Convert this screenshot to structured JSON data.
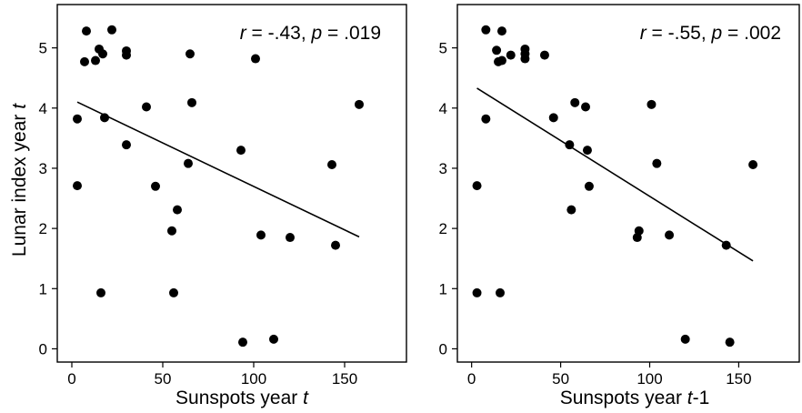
{
  "chart_data": [
    {
      "type": "scatter",
      "title": "",
      "annotation": {
        "r_label": "r",
        "r_value": " = -.43, ",
        "p_label": "p",
        "p_value": " = .019"
      },
      "xlabel": {
        "text": "Sunspots year ",
        "var": "t",
        "suffix": ""
      },
      "ylabel": {
        "text": "Lunar index year ",
        "var": "t"
      },
      "xlim": [
        -8,
        184
      ],
      "ylim": [
        -0.22,
        5.72
      ],
      "xticks": [
        0,
        50,
        100,
        150
      ],
      "yticks": [
        0,
        1,
        2,
        3,
        4,
        5
      ],
      "fit_line": {
        "x": [
          3,
          158
        ],
        "y": [
          4.1,
          1.86
        ]
      },
      "points": [
        {
          "x": 8,
          "y": 5.28
        },
        {
          "x": 22,
          "y": 5.3
        },
        {
          "x": 7,
          "y": 4.77
        },
        {
          "x": 13,
          "y": 4.79
        },
        {
          "x": 15,
          "y": 4.98
        },
        {
          "x": 17,
          "y": 4.9
        },
        {
          "x": 30,
          "y": 4.95
        },
        {
          "x": 30,
          "y": 4.88
        },
        {
          "x": 65,
          "y": 4.9
        },
        {
          "x": 101,
          "y": 4.82
        },
        {
          "x": 3,
          "y": 3.82
        },
        {
          "x": 18,
          "y": 3.84
        },
        {
          "x": 41,
          "y": 4.02
        },
        {
          "x": 66,
          "y": 4.09
        },
        {
          "x": 158,
          "y": 4.06
        },
        {
          "x": 30,
          "y": 3.39
        },
        {
          "x": 93,
          "y": 3.3
        },
        {
          "x": 64,
          "y": 3.08
        },
        {
          "x": 143,
          "y": 3.06
        },
        {
          "x": 3,
          "y": 2.71
        },
        {
          "x": 46,
          "y": 2.7
        },
        {
          "x": 58,
          "y": 2.31
        },
        {
          "x": 55,
          "y": 1.96
        },
        {
          "x": 104,
          "y": 1.89
        },
        {
          "x": 120,
          "y": 1.85
        },
        {
          "x": 145,
          "y": 1.72
        },
        {
          "x": 16,
          "y": 0.93
        },
        {
          "x": 56,
          "y": 0.93
        },
        {
          "x": 111,
          "y": 0.16
        },
        {
          "x": 94,
          "y": 0.11
        }
      ]
    },
    {
      "type": "scatter",
      "title": "",
      "annotation": {
        "r_label": "r",
        "r_value": " = -.55, ",
        "p_label": "p",
        "p_value": " = .002"
      },
      "xlabel": {
        "text": "Sunspots year ",
        "var": "t",
        "suffix": "-1"
      },
      "ylabel": {
        "text": "",
        "var": ""
      },
      "xlim": [
        -8,
        184
      ],
      "ylim": [
        -0.22,
        5.72
      ],
      "xticks": [
        0,
        50,
        100,
        150
      ],
      "yticks": [
        0,
        1,
        2,
        3,
        4,
        5
      ],
      "fit_line": {
        "x": [
          3,
          158
        ],
        "y": [
          4.33,
          1.46
        ]
      },
      "points": [
        {
          "x": 8,
          "y": 5.3
        },
        {
          "x": 17,
          "y": 5.28
        },
        {
          "x": 14,
          "y": 4.96
        },
        {
          "x": 15,
          "y": 4.77
        },
        {
          "x": 17,
          "y": 4.79
        },
        {
          "x": 22,
          "y": 4.88
        },
        {
          "x": 30,
          "y": 4.98
        },
        {
          "x": 30,
          "y": 4.9
        },
        {
          "x": 30,
          "y": 4.82
        },
        {
          "x": 41,
          "y": 4.88
        },
        {
          "x": 8,
          "y": 3.82
        },
        {
          "x": 46,
          "y": 3.84
        },
        {
          "x": 58,
          "y": 4.09
        },
        {
          "x": 64,
          "y": 4.02
        },
        {
          "x": 101,
          "y": 4.06
        },
        {
          "x": 55,
          "y": 3.39
        },
        {
          "x": 65,
          "y": 3.3
        },
        {
          "x": 104,
          "y": 3.08
        },
        {
          "x": 158,
          "y": 3.06
        },
        {
          "x": 3,
          "y": 2.71
        },
        {
          "x": 66,
          "y": 2.7
        },
        {
          "x": 56,
          "y": 2.31
        },
        {
          "x": 94,
          "y": 1.96
        },
        {
          "x": 93,
          "y": 1.85
        },
        {
          "x": 111,
          "y": 1.89
        },
        {
          "x": 143,
          "y": 1.72
        },
        {
          "x": 3,
          "y": 0.93
        },
        {
          "x": 16,
          "y": 0.93
        },
        {
          "x": 120,
          "y": 0.16
        },
        {
          "x": 145,
          "y": 0.11
        }
      ]
    }
  ]
}
